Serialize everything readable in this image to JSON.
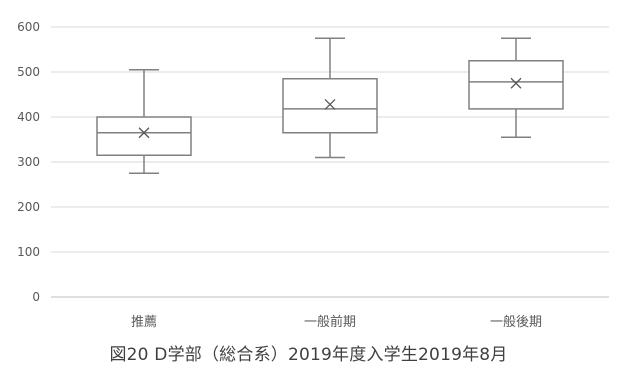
{
  "chart_data": {
    "type": "box",
    "title": "",
    "caption": "図20 D学部（総合系）2019年度入学生2019年8月",
    "categories": [
      "推薦",
      "一般前期",
      "一般後期"
    ],
    "boxes": [
      {
        "category": "推薦",
        "min": 275,
        "q1": 315,
        "median": 365,
        "q3": 400,
        "max": 505,
        "mean": 365
      },
      {
        "category": "一般前期",
        "min": 310,
        "q1": 365,
        "median": 418,
        "q3": 485,
        "max": 575,
        "mean": 428
      },
      {
        "category": "一般後期",
        "min": 355,
        "q1": 418,
        "median": 478,
        "q3": 525,
        "max": 575,
        "mean": 475
      }
    ],
    "y_ticks": [
      "0",
      "100",
      "200",
      "300",
      "400",
      "500",
      "600"
    ],
    "ylim": [
      0,
      600
    ],
    "grid": true,
    "colors": {
      "box": "#808080",
      "grid": "#d9d9d9",
      "text": "#595959"
    }
  }
}
